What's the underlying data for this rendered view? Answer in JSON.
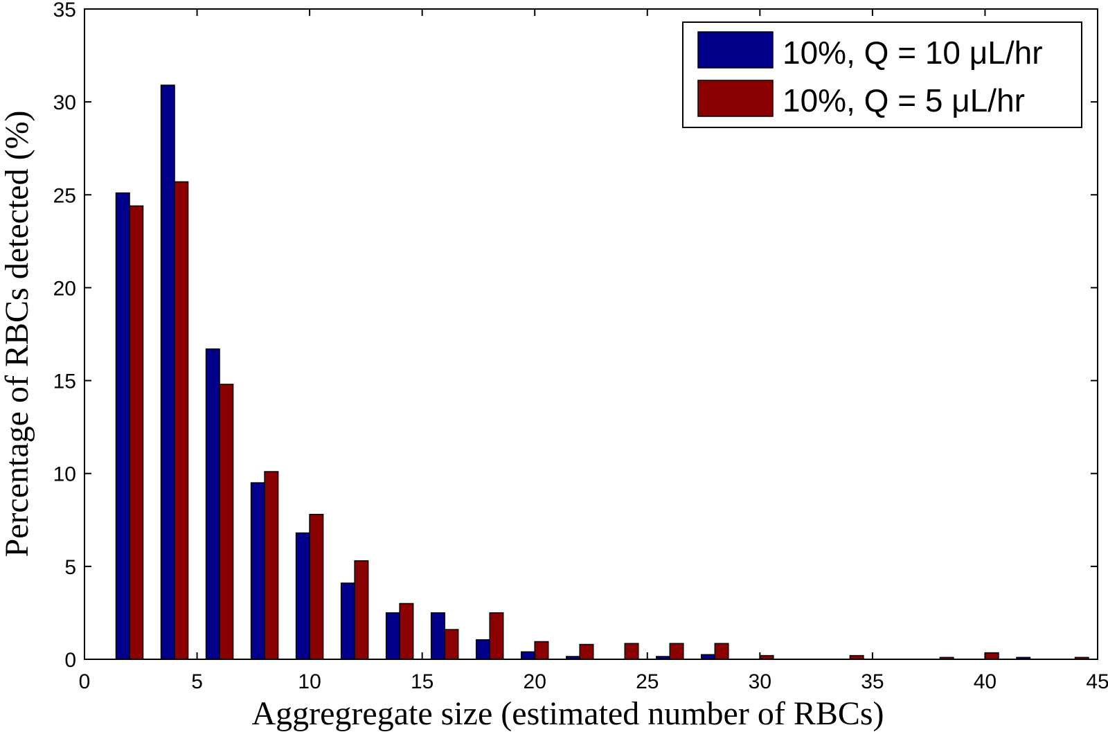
{
  "chart_data": {
    "type": "bar",
    "xlabel": "Aggregregate size (estimated number of RBCs)",
    "ylabel": "Percentage of RBCs detected (%)",
    "xlim": [
      0,
      45
    ],
    "ylim": [
      0,
      35
    ],
    "xticks": [
      0,
      5,
      10,
      15,
      20,
      25,
      30,
      35,
      40,
      45
    ],
    "yticks": [
      0,
      5,
      10,
      15,
      20,
      25,
      30,
      35
    ],
    "grid": false,
    "legend_position": "top-right",
    "x": [
      2,
      4,
      6,
      8,
      10,
      12,
      14,
      16,
      18,
      20,
      22,
      24,
      26,
      28,
      30,
      32,
      34,
      36,
      38,
      40,
      42,
      44
    ],
    "series": [
      {
        "name": "10%, Q = 10 μL/hr",
        "color": "#00008b",
        "values": [
          25.1,
          30.9,
          16.7,
          9.5,
          6.8,
          4.1,
          2.5,
          2.5,
          1.05,
          0.4,
          0.15,
          0,
          0.15,
          0.25,
          0,
          0,
          0,
          0,
          0,
          0,
          0.1,
          0
        ]
      },
      {
        "name": "10%, Q = 5 μL/hr",
        "color": "#8b0000",
        "values": [
          24.4,
          25.7,
          14.8,
          10.1,
          7.8,
          5.3,
          3.0,
          1.6,
          2.5,
          0.95,
          0.8,
          0.85,
          0.85,
          0.85,
          0.2,
          0,
          0.2,
          0,
          0.1,
          0.35,
          0,
          0.1
        ]
      }
    ]
  }
}
